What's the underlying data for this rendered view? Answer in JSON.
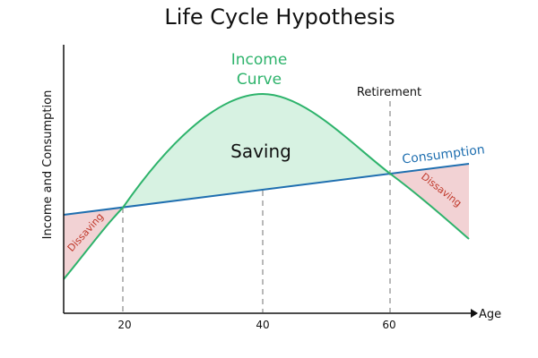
{
  "title": "Life Cycle Hypothesis",
  "axes": {
    "y_label": "Income and Consumption",
    "x_label": "Age",
    "x_ticks": [
      "20",
      "40",
      "60"
    ]
  },
  "labels": {
    "income_curve_line1": "Income",
    "income_curve_line2": "Curve",
    "saving": "Saving",
    "retirement": "Retirement",
    "consumption": "Consumption",
    "dissaving_left": "Dissaving",
    "dissaving_right": "Dissaving"
  },
  "colors": {
    "income": "#2db36b",
    "saving_fill": "#d7f2e2",
    "consumption": "#1f6fb0",
    "dissaving_fill": "#f2d2d4",
    "dissaving_text": "#c0392b",
    "dashed": "#8a8a8a",
    "axis": "#111111"
  }
}
